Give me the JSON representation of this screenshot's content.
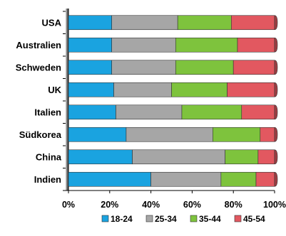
{
  "chart_data": {
    "type": "bar",
    "orientation": "horizontal",
    "stacked": "percent",
    "categories": [
      "USA",
      "Australien",
      "Schweden",
      "UK",
      "Italien",
      "Südkorea",
      "China",
      "Indien"
    ],
    "series": [
      {
        "name": "18-24",
        "color": "#1aa3e0",
        "values": [
          21,
          21,
          21,
          22,
          23,
          28,
          31,
          40
        ]
      },
      {
        "name": "25-34",
        "color": "#a6a6a6",
        "values": [
          32,
          31,
          31,
          28,
          32,
          42,
          45,
          34
        ]
      },
      {
        "name": "35-44",
        "color": "#7ec33d",
        "values": [
          26,
          30,
          28,
          27,
          29,
          23,
          16,
          17
        ]
      },
      {
        "name": "45-54",
        "color": "#e25860",
        "values": [
          21,
          18,
          20,
          23,
          16,
          7,
          8,
          9
        ]
      }
    ],
    "x_ticks": [
      "0%",
      "20%",
      "40%",
      "60%",
      "80%",
      "100%"
    ],
    "xlim": [
      0,
      100
    ],
    "grid": false,
    "legend_position": "bottom"
  }
}
